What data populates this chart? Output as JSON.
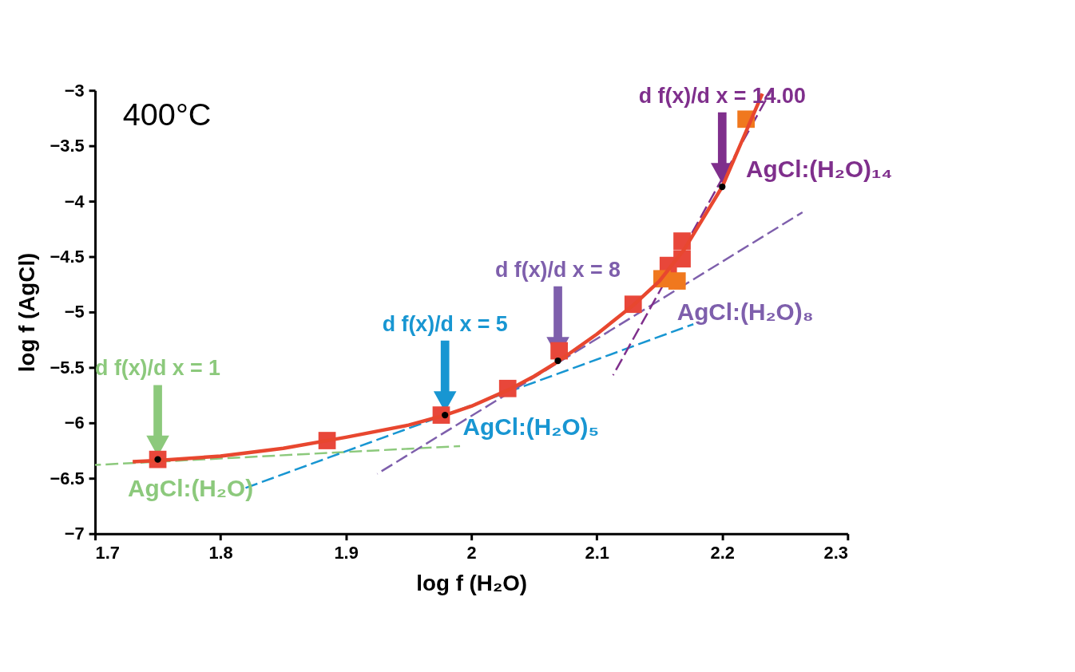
{
  "chart_data": {
    "type": "scatter",
    "xlabel": "log f (H₂O)",
    "ylabel": "log f (AgCl)",
    "xlim": [
      1.7,
      2.3
    ],
    "xticks": [
      1.7,
      1.8,
      1.9,
      2,
      2.1,
      2.2,
      2.3
    ],
    "ylim": [
      -7,
      -3
    ],
    "yticks": [
      -7,
      -6.5,
      -6,
      -5.5,
      -5,
      -4.5,
      -4,
      -3.5,
      -3
    ],
    "grid": false,
    "series": [
      {
        "type": "line",
        "name": "AgCl:(H₂O)",
        "color": "#8cc97c",
        "line_style": "dashed",
        "x": [
          1.7,
          1.991
        ],
        "values": [
          -6.38,
          -6.21
        ]
      },
      {
        "type": "line",
        "name": "AgCl:(H₂O)₅",
        "color": "#1896d2",
        "line_style": "dashed",
        "x": [
          1.817,
          2.177
        ],
        "values": [
          -6.6,
          -5.11
        ]
      },
      {
        "type": "line",
        "name": "AgCl:(H₂O)₈",
        "color": "#7e5fac",
        "line_style": "dashed",
        "x": [
          1.925,
          2.264
        ],
        "values": [
          -6.46,
          -4.1
        ]
      },
      {
        "type": "line",
        "name": "AgCl:(H₂O)₁₄",
        "color": "#7f2f8c",
        "line_style": "dashed",
        "x": [
          2.113,
          2.239
        ],
        "values": [
          -5.57,
          -3.0
        ]
      },
      {
        "color": "#e8473a",
        "marker": "square",
        "x": [
          1.75,
          1.885,
          1.976,
          2.029,
          2.07,
          2.129,
          2.157,
          2.168,
          2.168
        ],
        "values": [
          -6.33,
          -6.16,
          -5.93,
          -5.69,
          -5.35,
          -4.93,
          -4.58,
          -4.52,
          -4.36
        ]
      },
      {
        "color": "#f0781e",
        "marker": "square",
        "x": [
          2.152,
          2.164,
          2.219
        ],
        "values": [
          -4.7,
          -4.72,
          -3.26
        ]
      },
      {
        "type": "line",
        "color": "#e8472f",
        "line_style": "solid",
        "x": [
          1.73,
          1.75,
          1.8,
          1.85,
          1.9,
          1.95,
          1.979,
          2.0,
          2.03,
          2.05,
          2.07,
          2.1,
          2.13,
          2.15,
          2.17,
          2.2,
          2.232
        ],
        "values": [
          -6.35,
          -6.34,
          -6.3,
          -6.23,
          -6.13,
          -6.02,
          -5.93,
          -5.85,
          -5.7,
          -5.58,
          -5.44,
          -5.2,
          -4.93,
          -4.72,
          -4.43,
          -3.87,
          -3.03
        ]
      },
      {
        "color": "#000000",
        "marker": "circle",
        "x": [
          1.75,
          1.979,
          2.069,
          2.2
        ],
        "values": [
          -6.33,
          -5.93,
          -5.44,
          -3.87
        ]
      }
    ],
    "annotations": [
      "400°C",
      "d f(x)/d x = 1",
      "d f(x)/d x = 5",
      "d f(x)/d x = 8",
      "d f(x)/d x = 14.00"
    ]
  }
}
